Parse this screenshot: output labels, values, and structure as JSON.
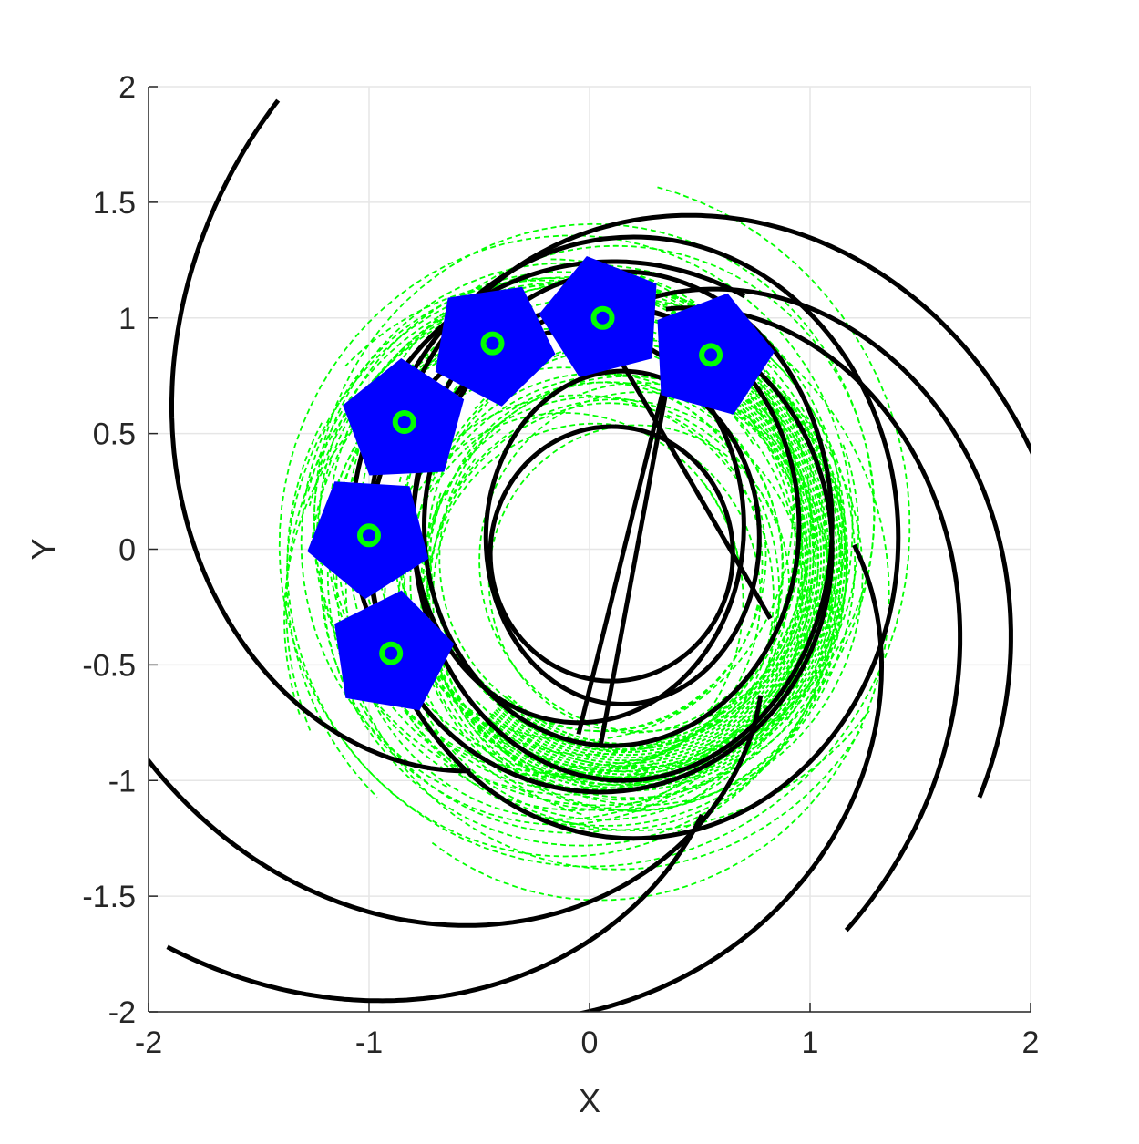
{
  "chart_data": {
    "type": "line",
    "title": "",
    "xlabel": "X",
    "ylabel": "Y",
    "xlim": [
      -2,
      2
    ],
    "ylim": [
      -2,
      2
    ],
    "grid": true,
    "xticks": [
      -2,
      -1,
      0,
      1,
      2
    ],
    "yticks": [
      -2,
      -1.5,
      -1,
      -0.5,
      0,
      0.5,
      1,
      1.5,
      2
    ],
    "xtick_labels": [
      "-2",
      "-1",
      "0",
      "1",
      "2"
    ],
    "ytick_labels": [
      "-2",
      "-1.5",
      "-1",
      "-0.5",
      "0",
      "0.5",
      "1",
      "1.5",
      "2"
    ],
    "colors": {
      "trajectory": "#000000",
      "reference": "#00ff00",
      "agent_body": "#0000ff",
      "agent_marker": "#00ff00",
      "grid": "#e6e6e6",
      "axis": "#262626"
    },
    "agents": [
      {
        "x": -0.9,
        "y": -0.45
      },
      {
        "x": -1.0,
        "y": 0.06
      },
      {
        "x": -0.84,
        "y": 0.55
      },
      {
        "x": -0.44,
        "y": 0.89
      },
      {
        "x": 0.06,
        "y": 1.0
      },
      {
        "x": 0.55,
        "y": 0.84
      }
    ],
    "orbits": [
      {
        "cx": 0.1,
        "cy": -0.02,
        "rx": 0.55,
        "ry": 0.55
      },
      {
        "cx": 0.15,
        "cy": 0.05,
        "rx": 0.62,
        "ry": 0.72
      },
      {
        "cx": 0.1,
        "cy": 0.1,
        "rx": 0.85,
        "ry": 0.95
      },
      {
        "cx": 0.15,
        "cy": 0.1,
        "rx": 0.95,
        "ry": 1.1
      },
      {
        "cx": 0.05,
        "cy": 0.0,
        "rx": 1.05,
        "ry": 1.05
      },
      {
        "cx": 0.2,
        "cy": 0.05,
        "rx": 1.2,
        "ry": 1.3
      },
      {
        "cx": -0.05,
        "cy": 0.1,
        "rx": 0.75,
        "ry": 0.85
      }
    ]
  }
}
